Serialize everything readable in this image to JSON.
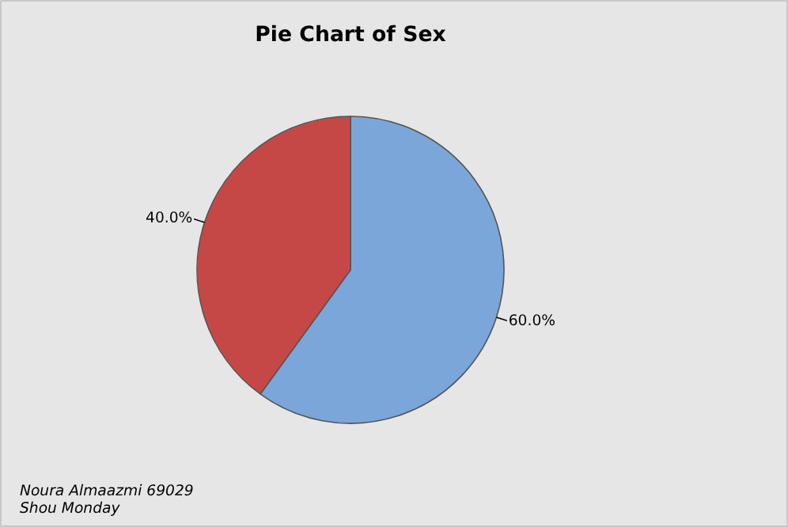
{
  "chart_data": {
    "type": "pie",
    "title": "Pie Chart of Sex",
    "categories": [
      null,
      null
    ],
    "values": [
      60,
      40
    ],
    "colors": [
      "#7ba6d9",
      "#c64846"
    ],
    "value_labels": [
      "60.0%",
      "40.0%"
    ],
    "annotations": [
      "Noura Almaazmi 69029",
      "Shou Monday"
    ]
  }
}
